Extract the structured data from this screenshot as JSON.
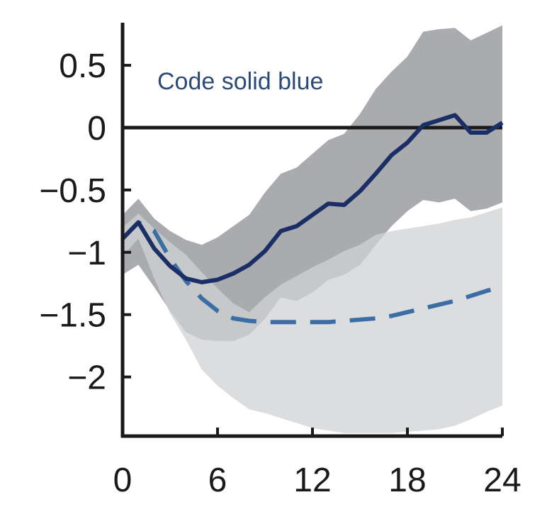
{
  "chart_data": {
    "type": "line",
    "title": "",
    "xlabel": "",
    "ylabel": "",
    "xlim": [
      0,
      24
    ],
    "ylim": [
      -2.45,
      0.82
    ],
    "x_ticks": [
      0,
      6,
      12,
      18,
      24
    ],
    "x_tick_labels": [
      "0",
      "6",
      "12",
      "18",
      "24"
    ],
    "y_ticks": [
      0.5,
      0,
      -0.5,
      -1,
      -1.5,
      -2
    ],
    "y_tick_labels": [
      "0.5",
      "0",
      "−0.5",
      "−1",
      "−1.5",
      "−2"
    ],
    "grid": false,
    "zero_line": 0,
    "annotation": {
      "text": "Code solid blue",
      "color": "#2c4a78"
    },
    "colors": {
      "solid_line": "#1b2f66",
      "dashed_line": "#3a6ea5",
      "dark_band": "#a9abae",
      "light_band": "#dcdddf",
      "overlap_band": "#c7c8ca",
      "axis": "#1a1a1a"
    },
    "series": [
      {
        "style": "solid",
        "x": [
          0,
          1,
          2,
          3,
          4,
          5,
          6,
          7,
          8,
          9,
          10,
          11,
          12,
          13,
          14,
          15,
          16,
          17,
          18,
          19,
          20,
          21,
          22,
          23,
          24
        ],
        "y": [
          -0.89,
          -0.76,
          -0.97,
          -1.11,
          -1.21,
          -1.24,
          -1.22,
          -1.17,
          -1.1,
          -0.99,
          -0.83,
          -0.79,
          -0.7,
          -0.61,
          -0.62,
          -0.51,
          -0.37,
          -0.22,
          -0.12,
          0.02,
          0.06,
          0.1,
          -0.04,
          -0.04,
          0.04
        ],
        "band_upper": [
          -0.7,
          -0.57,
          -0.73,
          -0.83,
          -0.9,
          -0.94,
          -0.88,
          -0.79,
          -0.7,
          -0.52,
          -0.37,
          -0.32,
          -0.21,
          -0.1,
          -0.05,
          0.11,
          0.31,
          0.45,
          0.57,
          0.77,
          0.79,
          0.8,
          0.7,
          0.76,
          0.82
        ],
        "band_lower": [
          -1.18,
          -1.1,
          -1.28,
          -1.47,
          -1.64,
          -1.7,
          -1.71,
          -1.71,
          -1.66,
          -1.53,
          -1.36,
          -1.39,
          -1.32,
          -1.22,
          -1.18,
          -1.1,
          -0.94,
          -0.79,
          -0.67,
          -0.58,
          -0.6,
          -0.57,
          -0.67,
          -0.65,
          -0.6
        ]
      },
      {
        "style": "dashed",
        "x": [
          0,
          1,
          2,
          3,
          4,
          5,
          6,
          7,
          8,
          9,
          10,
          11,
          12,
          13,
          14,
          15,
          16,
          17,
          18,
          19,
          20,
          21,
          22,
          23,
          24
        ],
        "y": [
          -0.89,
          -0.76,
          -0.83,
          -1.05,
          -1.23,
          -1.37,
          -1.47,
          -1.53,
          -1.55,
          -1.56,
          -1.56,
          -1.56,
          -1.56,
          -1.56,
          -1.55,
          -1.54,
          -1.53,
          -1.51,
          -1.48,
          -1.45,
          -1.42,
          -1.39,
          -1.35,
          -1.31,
          -1.27
        ],
        "band_upper": [
          -0.8,
          -0.69,
          -0.81,
          -0.92,
          -1.02,
          -1.16,
          -1.29,
          -1.41,
          -1.48,
          -1.36,
          -1.26,
          -1.19,
          -1.12,
          -1.06,
          -0.99,
          -0.94,
          -0.86,
          -0.83,
          -0.81,
          -0.79,
          -0.77,
          -0.74,
          -0.72,
          -0.68,
          -0.64
        ],
        "band_lower": [
          -1.03,
          -0.89,
          -1.21,
          -1.49,
          -1.7,
          -1.94,
          -2.07,
          -2.17,
          -2.26,
          -2.29,
          -2.33,
          -2.37,
          -2.41,
          -2.43,
          -2.45,
          -2.45,
          -2.45,
          -2.45,
          -2.44,
          -2.43,
          -2.42,
          -2.39,
          -2.34,
          -2.28,
          -2.23
        ]
      }
    ]
  }
}
